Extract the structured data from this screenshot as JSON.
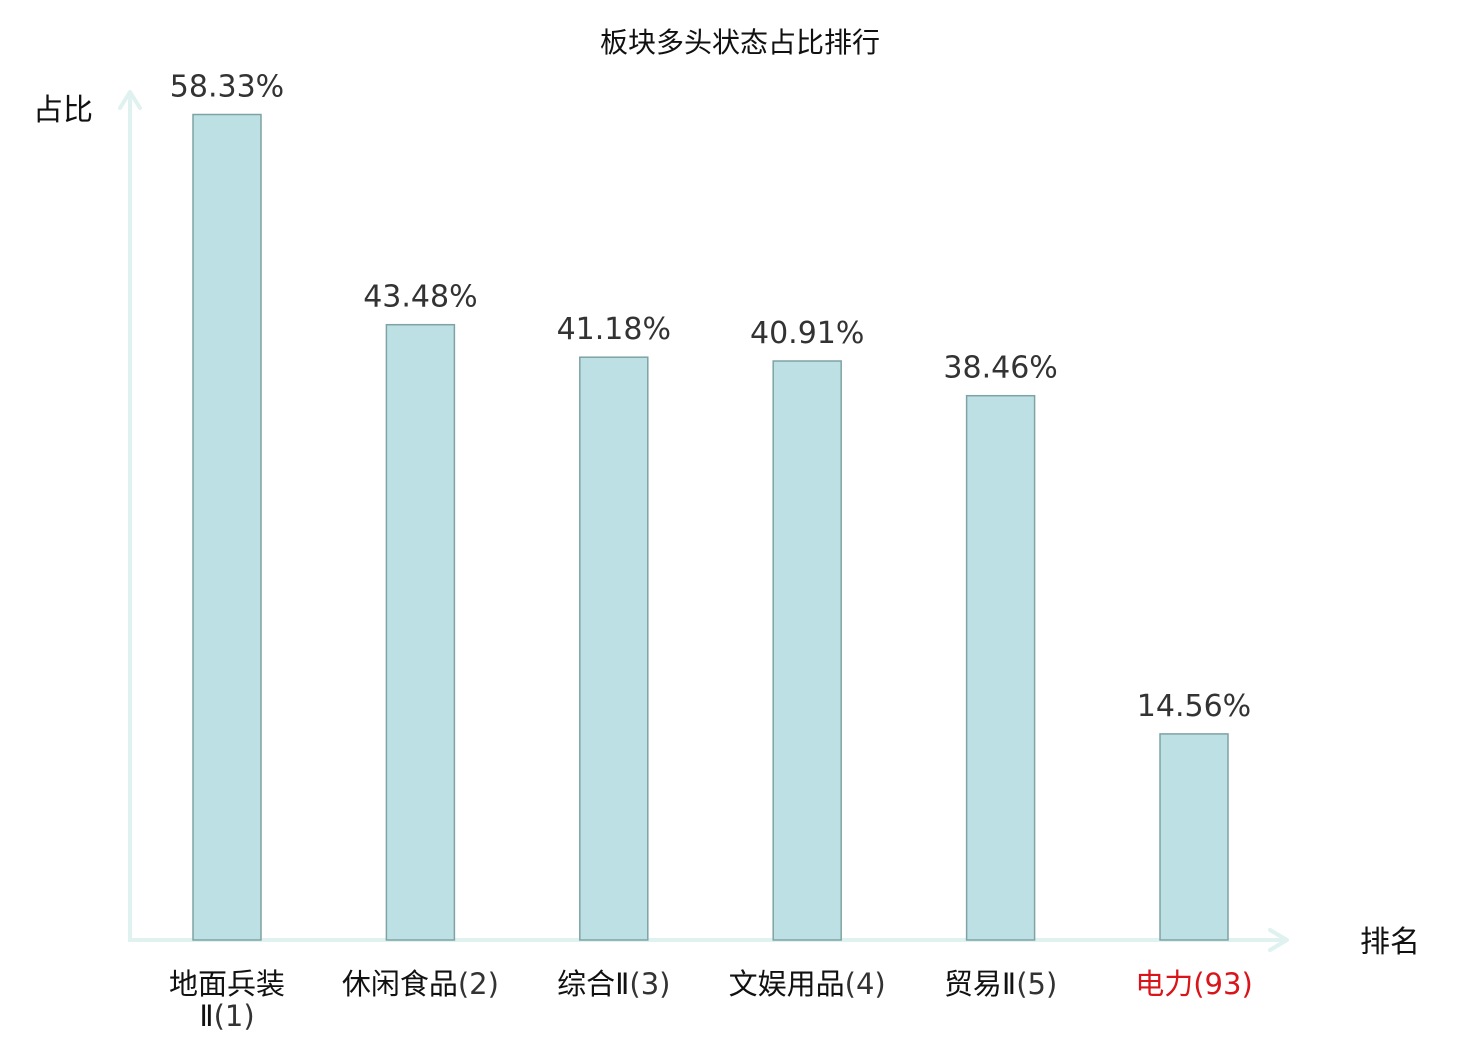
{
  "chart_data": {
    "type": "bar",
    "title": "板块多头状态占比排行",
    "xlabel": "排名",
    "ylabel": "占比",
    "ylim": [
      0,
      60
    ],
    "grid": false,
    "categories": [
      {
        "name": "地面兵装Ⅱ",
        "rank": "(1)",
        "highlight": false
      },
      {
        "name": "休闲食品",
        "rank": "(2)",
        "highlight": false
      },
      {
        "name": "综合Ⅱ",
        "rank": "(3)",
        "highlight": false
      },
      {
        "name": "文娱用品",
        "rank": "(4)",
        "highlight": false
      },
      {
        "name": "贸易Ⅱ",
        "rank": "(5)",
        "highlight": false
      },
      {
        "name": "电力",
        "rank": "(93)",
        "highlight": true
      }
    ],
    "values": [
      58.33,
      43.48,
      41.18,
      40.91,
      38.46,
      14.56
    ],
    "value_labels": [
      "58.33%",
      "43.48%",
      "41.18%",
      "40.91%",
      "38.46%",
      "14.56%"
    ],
    "colors": {
      "bar_fill": "#bce0e3",
      "bar_stroke": "#7fa3a5",
      "axis": "#dff2ef",
      "label_text": "#333333",
      "category_text": "#111111",
      "highlight_text": "#d9141a"
    }
  }
}
